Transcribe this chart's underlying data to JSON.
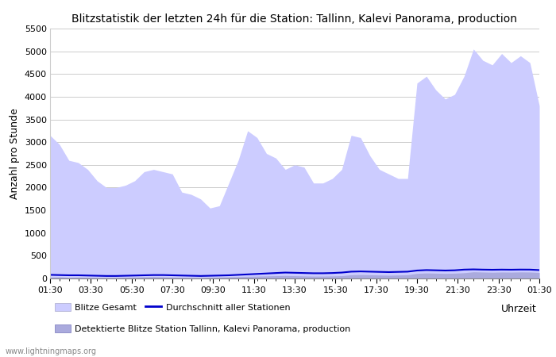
{
  "title": "Blitzstatistik der letzten 24h für die Station: Tallinn, Kalevi Panorama, production",
  "xlabel": "Uhrzeit",
  "ylabel": "Anzahl pro Stunde",
  "watermark": "www.lightningmaps.org",
  "ylim": [
    0,
    5500
  ],
  "yticks": [
    0,
    500,
    1000,
    1500,
    2000,
    2500,
    3000,
    3500,
    4000,
    4500,
    5000,
    5500
  ],
  "xtick_labels": [
    "01:30",
    "03:30",
    "05:30",
    "07:30",
    "09:30",
    "11:30",
    "13:30",
    "15:30",
    "17:30",
    "19:30",
    "21:30",
    "23:30",
    "01:30"
  ],
  "legend_labels": [
    "Blitze Gesamt",
    "Detektierte Blitze Station Tallinn, Kalevi Panorama, production",
    "Durchschnitt aller Stationen"
  ],
  "fill_color_gesamt": "#ccccff",
  "fill_color_station": "#aaaadd",
  "line_color_avg": "#0000cc",
  "background_color": "#ffffff",
  "title_fontsize": 10,
  "axis_fontsize": 9,
  "tick_fontsize": 8,
  "blitze_gesamt": [
    3150,
    2950,
    2600,
    2550,
    2400,
    2150,
    2000,
    2000,
    2050,
    2150,
    2350,
    2400,
    2350,
    2300,
    1900,
    1850,
    1750,
    1550,
    1600,
    2100,
    2600,
    3250,
    3100,
    2750,
    2650,
    2400,
    2500,
    2450,
    2100,
    2100,
    2200,
    2400,
    3150,
    3100,
    2700,
    2400,
    2300,
    2200,
    2200,
    4300,
    4450,
    4150,
    3950,
    4050,
    4450,
    5050,
    4800,
    4700,
    4950,
    4750,
    4900,
    4750,
    3800
  ],
  "blitze_station": [
    30,
    35,
    25,
    30,
    25,
    20,
    20,
    20,
    25,
    30,
    35,
    40,
    35,
    30,
    25,
    20,
    20,
    25,
    30,
    35,
    40,
    45,
    50,
    55,
    60,
    65,
    60,
    55,
    50,
    50,
    55,
    60,
    80,
    85,
    80,
    75,
    70,
    75,
    80,
    110,
    120,
    115,
    110,
    115,
    125,
    145,
    140,
    135,
    140,
    138,
    142,
    140,
    130
  ],
  "avg_stationen": [
    80,
    75,
    70,
    70,
    65,
    60,
    55,
    55,
    60,
    65,
    70,
    75,
    75,
    70,
    65,
    60,
    55,
    60,
    65,
    70,
    80,
    90,
    100,
    110,
    120,
    130,
    125,
    120,
    115,
    115,
    120,
    130,
    150,
    155,
    150,
    145,
    140,
    145,
    150,
    175,
    185,
    180,
    175,
    180,
    195,
    200,
    195,
    192,
    195,
    193,
    196,
    195,
    185
  ]
}
